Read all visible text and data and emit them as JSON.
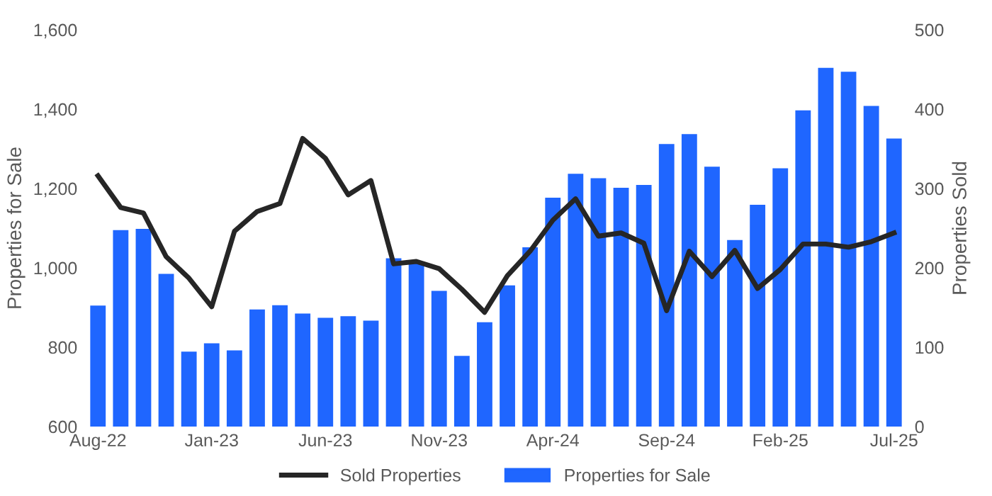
{
  "chart_data": {
    "type": "bar",
    "categories": [
      "Aug-22",
      null,
      null,
      null,
      null,
      "Jan-23",
      null,
      null,
      null,
      null,
      "Jun-23",
      null,
      null,
      null,
      null,
      "Nov-23",
      null,
      null,
      null,
      null,
      "Apr-24",
      null,
      null,
      null,
      null,
      "Sep-24",
      null,
      null,
      null,
      null,
      "Feb-25",
      null,
      null,
      null,
      null,
      "Jul-25"
    ],
    "series": [
      {
        "name": "Properties for Sale",
        "color": "#1f66ff",
        "values": [
          905,
          1095,
          1098,
          985,
          789,
          810,
          792,
          895,
          906,
          885,
          874,
          878,
          867,
          1024,
          1016,
          942,
          778,
          863,
          956,
          1052,
          1177,
          1237,
          1226,
          1202,
          1209,
          1312,
          1337,
          1255,
          1070,
          1159,
          1251,
          1397,
          1504,
          1494,
          1408,
          1326
        ]
      },
      {
        "name": "Sold Properties",
        "type": "line",
        "axis": "y2",
        "color": "#262626",
        "values": [
          316,
          276,
          269,
          214,
          187,
          151,
          246,
          271,
          281,
          363,
          338,
          292,
          310,
          205,
          208,
          199,
          173,
          144,
          190,
          221,
          260,
          287,
          240,
          244,
          231,
          146,
          221,
          189,
          222,
          174,
          198,
          230,
          230,
          226,
          233,
          244
        ]
      }
    ],
    "ylabel": "Properties for Sale",
    "y2label": "Properties Sold",
    "ylim": [
      600,
      1600
    ],
    "yticks": [
      {
        "value": 600,
        "label": "600"
      },
      {
        "value": 800,
        "label": "800"
      },
      {
        "value": 1000,
        "label": "1,000"
      },
      {
        "value": 1200,
        "label": "1,200"
      },
      {
        "value": 1400,
        "label": "1,400"
      },
      {
        "value": 1600,
        "label": "1,600"
      }
    ],
    "y2lim": [
      0,
      500
    ],
    "y2ticks": [
      0,
      100,
      200,
      300,
      400,
      500
    ],
    "legend": "bottom",
    "grid": false
  }
}
